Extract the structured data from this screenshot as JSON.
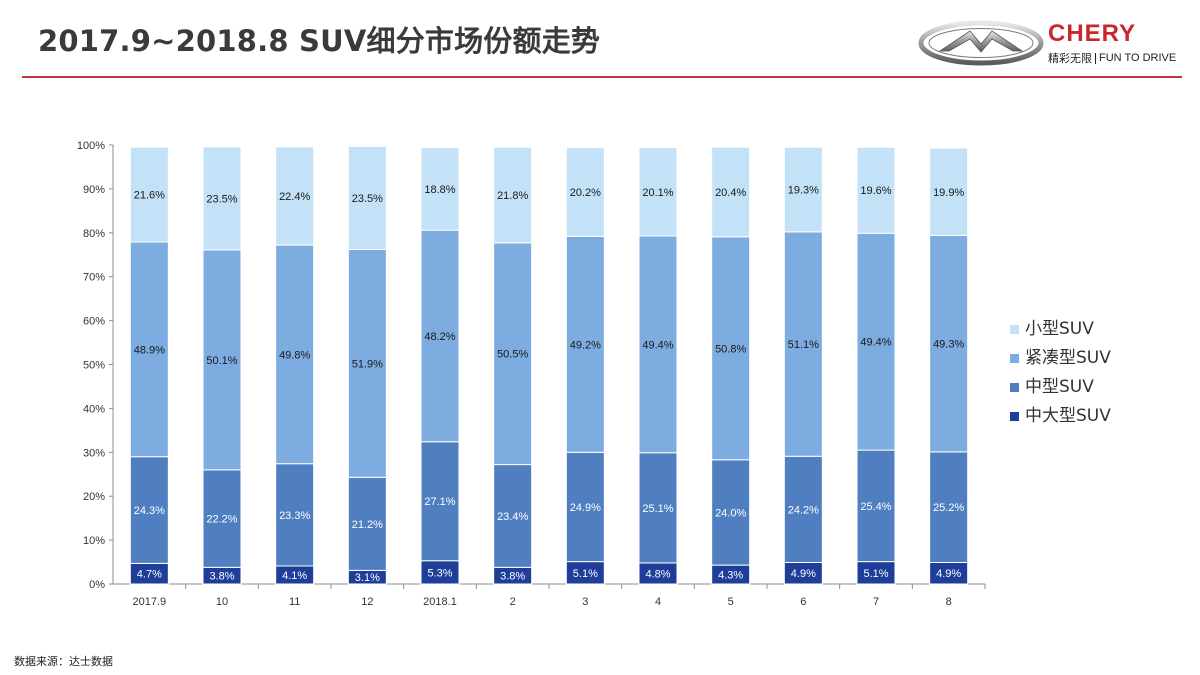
{
  "header": {
    "title": "2017.9~2018.8 SUV细分市场份额走势",
    "brand_name": "CHERY",
    "slogan_cn": "精彩无限",
    "slogan_en": "FUN TO DRIVE",
    "accent_color": "#c4343a"
  },
  "footer": {
    "source": "数据来源：达士数据"
  },
  "chart_data": {
    "type": "bar",
    "stacked": true,
    "percent_stacked": true,
    "categories": [
      "2017.9",
      "10",
      "11",
      "12",
      "2018.1",
      "2",
      "3",
      "4",
      "5",
      "6",
      "7",
      "8"
    ],
    "yticks": [
      "0%",
      "10%",
      "20%",
      "30%",
      "40%",
      "50%",
      "60%",
      "70%",
      "80%",
      "90%",
      "100%"
    ],
    "ylim": [
      0,
      100
    ],
    "legend_position": "right",
    "series": [
      {
        "name": "中大型SUV",
        "color": "#1f3e9a",
        "label_color": "#ffffff",
        "values": [
          4.7,
          3.8,
          4.1,
          3.1,
          5.3,
          3.8,
          5.1,
          4.8,
          4.3,
          4.9,
          5.1,
          4.9
        ],
        "labels": [
          "4.7%",
          "3.8%",
          "4.1%",
          "3.1%",
          "5.3%",
          "3.8%",
          "5.1%",
          "4.8%",
          "4.3%",
          "4.9%",
          "5.1%",
          "4.9%"
        ]
      },
      {
        "name": "中型SUV",
        "color": "#4f7fc0",
        "label_color": "#ffffff",
        "values": [
          24.3,
          22.2,
          23.3,
          21.2,
          27.1,
          23.4,
          24.9,
          25.1,
          24.0,
          24.2,
          25.4,
          25.2
        ],
        "labels": [
          "24.3%",
          "22.2%",
          "23.3%",
          "21.2%",
          "27.1%",
          "23.4%",
          "24.9%",
          "25.1%",
          "24.0%",
          "24.2%",
          "25.4%",
          "25.2%"
        ]
      },
      {
        "name": "紧凑型SUV",
        "color": "#7dace0",
        "label_color": "#1a1a1a",
        "values": [
          48.9,
          50.1,
          49.8,
          51.9,
          48.2,
          50.5,
          49.2,
          49.4,
          50.8,
          51.1,
          49.4,
          49.3
        ],
        "labels": [
          "48.9%",
          "50.1%",
          "49.8%",
          "51.9%",
          "48.2%",
          "50.5%",
          "49.2%",
          "49.4%",
          "50.8%",
          "51.1%",
          "49.4%",
          "49.3%"
        ]
      },
      {
        "name": "小型SUV",
        "color": "#c3e2f7",
        "label_color": "#1a1a1a",
        "values": [
          21.6,
          23.5,
          22.4,
          23.5,
          18.8,
          21.8,
          20.2,
          20.1,
          20.4,
          19.3,
          19.6,
          19.9
        ],
        "labels": [
          "21.6%",
          "23.5%",
          "22.4%",
          "23.5%",
          "18.8%",
          "21.8%",
          "20.2%",
          "20.1%",
          "20.4%",
          "19.3%",
          "19.6%",
          "19.9%"
        ]
      }
    ],
    "legend_order": [
      "小型SUV",
      "紧凑型SUV",
      "中型SUV",
      "中大型SUV"
    ]
  }
}
